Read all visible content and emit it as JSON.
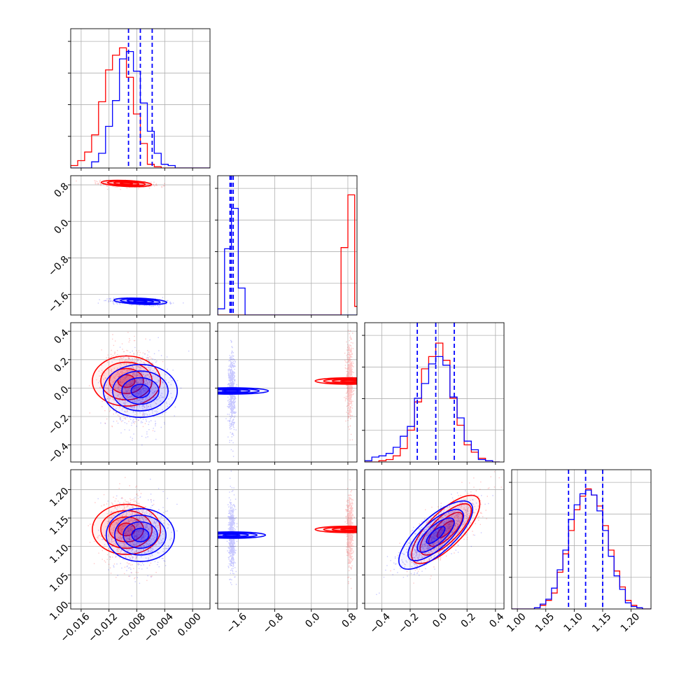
{
  "chart_data": {
    "type": "scatter",
    "plot_kind": "corner",
    "grid": true,
    "colors": {
      "series_a": "#ff0000",
      "series_b": "#0000ff",
      "quantile_lines": "#0000ff"
    },
    "parameters": [
      {
        "range": [
          -0.0175,
          0.0025
        ],
        "ticks": [
          "-0.016",
          "-0.012",
          "-0.008",
          "-0.004",
          "0.000"
        ],
        "tick_values": [
          -0.016,
          -0.012,
          -0.008,
          -0.004,
          0.0
        ]
      },
      {
        "range": [
          -2.05,
          1.0
        ],
        "ticks": [
          "-1.6",
          "-0.8",
          "0.0",
          "0.8"
        ],
        "tick_values": [
          -1.6,
          -0.8,
          0.0,
          0.8
        ]
      },
      {
        "range": [
          -0.52,
          0.46
        ],
        "ticks": [
          "-0.4",
          "-0.2",
          "0.0",
          "0.2",
          "0.4"
        ],
        "tick_values": [
          -0.4,
          -0.2,
          0.0,
          0.2,
          0.4
        ]
      },
      {
        "range": [
          0.99,
          1.235
        ],
        "ticks": [
          "1.00",
          "1.05",
          "1.10",
          "1.15",
          "1.20"
        ],
        "tick_values": [
          1.0,
          1.05,
          1.1,
          1.15,
          1.2
        ]
      }
    ],
    "distributions": [
      {
        "color": "red",
        "means": [
          -0.0095,
          0.83,
          0.05,
          1.13
        ],
        "sds": [
          0.0018,
          0.035,
          0.12,
          0.03
        ]
      },
      {
        "color": "blue",
        "means": [
          -0.0075,
          -1.75,
          -0.02,
          1.12
        ],
        "sds": [
          0.0019,
          0.035,
          0.13,
          0.03
        ]
      }
    ],
    "correlations": [
      {
        "pair": [
          2,
          3
        ],
        "r": 0.75
      },
      {
        "pair": [
          0,
          1
        ],
        "r": -0.35
      }
    ],
    "quantile_lines": [
      [
        -0.0092,
        -0.0075,
        -0.0058
      ],
      [
        -1.78,
        -1.75,
        -1.71
      ],
      [
        -0.15,
        -0.02,
        0.11
      ],
      [
        1.09,
        1.12,
        1.15
      ]
    ],
    "histograms": [
      {
        "edges": [
          -0.0175,
          -0.0165,
          -0.0155,
          -0.0145,
          -0.0135,
          -0.0125,
          -0.0115,
          -0.0105,
          -0.0095,
          -0.0085,
          -0.0075,
          -0.0065,
          -0.0055,
          -0.0045,
          -0.0035,
          -0.0025,
          -0.0015,
          -0.0005,
          0.0005,
          0.0015,
          0.0025
        ],
        "red": [
          0.02,
          0.06,
          0.13,
          0.27,
          0.54,
          0.8,
          0.92,
          0.98,
          0.74,
          0.44,
          0.2,
          0.03,
          0.01,
          0,
          0,
          0,
          0,
          0,
          0,
          0
        ],
        "blue": [
          0,
          0,
          0,
          0.05,
          0.12,
          0.34,
          0.55,
          0.89,
          0.95,
          0.79,
          0.53,
          0.3,
          0.12,
          0.03,
          0.02,
          0,
          0,
          0,
          0,
          0
        ]
      },
      {
        "edges": [
          -2.05,
          -1.9,
          -1.75,
          -1.6,
          -1.45,
          -1.3,
          -1.15,
          -1.0,
          -0.85,
          -0.7,
          -0.55,
          -0.4,
          -0.25,
          -0.1,
          0.05,
          0.2,
          0.35,
          0.5,
          0.65,
          0.8,
          0.95,
          1.1
        ],
        "red": [
          0,
          0,
          0,
          0,
          0,
          0,
          0,
          0,
          0,
          0,
          0,
          0,
          0,
          0,
          0,
          0,
          0,
          0,
          0.55,
          0.98,
          0.07
        ],
        "blue": [
          0.05,
          0.54,
          0.87,
          0.22,
          0,
          0,
          0,
          0,
          0,
          0,
          0,
          0,
          0,
          0,
          0,
          0,
          0,
          0,
          0,
          0,
          0
        ]
      },
      {
        "edges": [
          -0.52,
          -0.47,
          -0.42,
          -0.37,
          -0.32,
          -0.27,
          -0.22,
          -0.17,
          -0.12,
          -0.07,
          -0.02,
          0.03,
          0.08,
          0.13,
          0.18,
          0.23,
          0.28,
          0.33,
          0.38,
          0.43
        ],
        "red": [
          0,
          0,
          0.01,
          0.02,
          0.05,
          0.11,
          0.26,
          0.49,
          0.76,
          0.86,
          0.97,
          0.83,
          0.52,
          0.3,
          0.14,
          0.08,
          0.03,
          0.01,
          0
        ],
        "blue": [
          0.01,
          0.04,
          0.05,
          0.07,
          0.12,
          0.21,
          0.29,
          0.52,
          0.64,
          0.8,
          0.86,
          0.79,
          0.53,
          0.36,
          0.17,
          0.1,
          0.02,
          0.01,
          0
        ]
      },
      {
        "edges": [
          0.99,
          1.0,
          1.01,
          1.02,
          1.03,
          1.04,
          1.05,
          1.06,
          1.07,
          1.08,
          1.09,
          1.1,
          1.11,
          1.12,
          1.13,
          1.14,
          1.15,
          1.16,
          1.17,
          1.18,
          1.19,
          1.2,
          1.21,
          1.22,
          1.235
        ],
        "red": [
          0,
          0,
          0,
          0,
          0.01,
          0.03,
          0.07,
          0.13,
          0.3,
          0.45,
          0.64,
          0.81,
          0.92,
          0.98,
          0.93,
          0.84,
          0.68,
          0.48,
          0.31,
          0.18,
          0.07,
          0.03,
          0.01,
          0
        ],
        "blue": [
          0,
          0,
          0,
          0,
          0.01,
          0.04,
          0.08,
          0.17,
          0.32,
          0.48,
          0.73,
          0.85,
          0.94,
          0.97,
          0.93,
          0.8,
          0.64,
          0.43,
          0.27,
          0.16,
          0.05,
          0.02,
          0.01,
          0
        ]
      }
    ]
  }
}
